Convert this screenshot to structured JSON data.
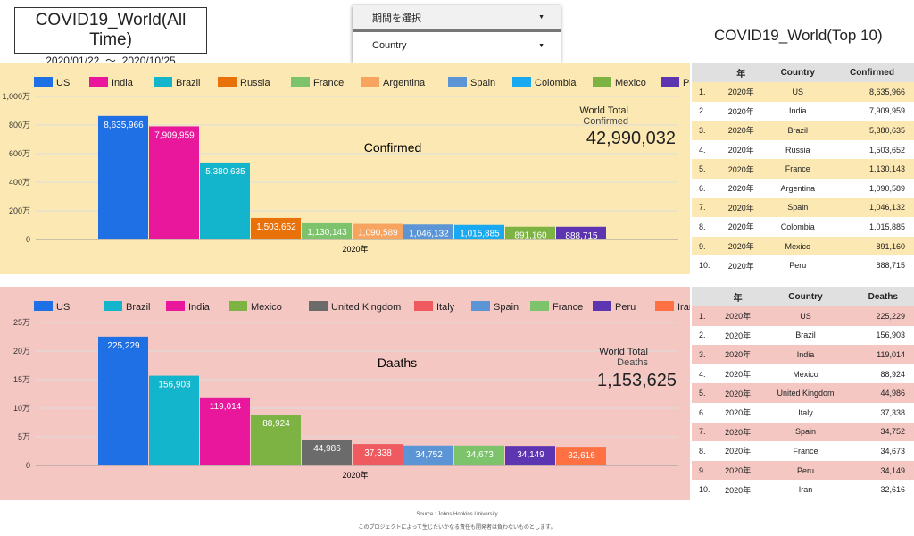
{
  "header": {
    "title": "COVID19_World(All Time)",
    "date_from": "2020/01/22",
    "tilde": "〜",
    "date_to": "2020/10/25",
    "top10_title": "COVID19_World(Top 10)"
  },
  "filters": [
    {
      "label": "期間を選択"
    },
    {
      "label": "Country"
    }
  ],
  "colors": {
    "US": "#1f6fe5",
    "India": "#e8179b",
    "Brazil": "#12b5cb",
    "Russia": "#e8710a",
    "France": "#7cc36b",
    "Argentina": "#f6a460",
    "Spain": "#5b95d6",
    "Colombia": "#18a9f0",
    "Mexico": "#7cb342",
    "Peru": "#5e35b1",
    "United Kingdom": "#6b6b6b",
    "Italy": "#ee5a5f",
    "Iran": "#ff7043"
  },
  "chart_data": [
    {
      "type": "bar",
      "title": "Confirmed",
      "xlabel": "2020年",
      "ylabel": "",
      "ylim": [
        0,
        10000000
      ],
      "yticks": [
        "0",
        "200万",
        "400万",
        "600万",
        "800万",
        "1,000万"
      ],
      "categories": [
        "US",
        "India",
        "Brazil",
        "Russia",
        "France",
        "Argentina",
        "Spain",
        "Colombia",
        "Mexico",
        "Peru"
      ],
      "values": [
        8635966,
        7909959,
        5380635,
        1503652,
        1130143,
        1090589,
        1046132,
        1015885,
        891160,
        888715
      ],
      "labels": [
        "8,635,966",
        "7,909,959",
        "5,380,635",
        "1,503,652",
        "1,130,143",
        "1,090,589",
        "1,046,132",
        "1,015,885",
        "891,160",
        "888,715"
      ],
      "legend": "top",
      "total_label": "World Total",
      "total_sub": "Confirmed",
      "total": "42,990,032"
    },
    {
      "type": "bar",
      "title": "Daaths",
      "xlabel": "2020年",
      "ylabel": "",
      "ylim": [
        0,
        250000
      ],
      "yticks": [
        "0",
        "5万",
        "10万",
        "15万",
        "20万",
        "25万"
      ],
      "categories": [
        "US",
        "Brazil",
        "India",
        "Mexico",
        "United Kingdom",
        "Italy",
        "Spain",
        "France",
        "Peru",
        "Iran"
      ],
      "values": [
        225229,
        156903,
        119014,
        88924,
        44986,
        37338,
        34752,
        34673,
        34149,
        32616
      ],
      "labels": [
        "225,229",
        "156,903",
        "119,014",
        "88,924",
        "44,986",
        "37,338",
        "34,752",
        "34,673",
        "34,149",
        "32,616"
      ],
      "legend": "top",
      "total_label": "World Total",
      "total_sub": "Deaths",
      "total": "1,153,625"
    }
  ],
  "tables": [
    {
      "headers": [
        "",
        "年",
        "Country",
        "Confirmed"
      ],
      "rows": [
        [
          "1.",
          "2020年",
          "US",
          "8,635,966"
        ],
        [
          "2.",
          "2020年",
          "India",
          "7,909,959"
        ],
        [
          "3.",
          "2020年",
          "Brazil",
          "5,380,635"
        ],
        [
          "4.",
          "2020年",
          "Russia",
          "1,503,652"
        ],
        [
          "5.",
          "2020年",
          "France",
          "1,130,143"
        ],
        [
          "6.",
          "2020年",
          "Argentina",
          "1,090,589"
        ],
        [
          "7.",
          "2020年",
          "Spain",
          "1,046,132"
        ],
        [
          "8.",
          "2020年",
          "Colombia",
          "1,015,885"
        ],
        [
          "9.",
          "2020年",
          "Mexico",
          "891,160"
        ],
        [
          "10.",
          "2020年",
          "Peru",
          "888,715"
        ]
      ]
    },
    {
      "headers": [
        "",
        "年",
        "Country",
        "Deaths"
      ],
      "rows": [
        [
          "1.",
          "2020年",
          "US",
          "225,229"
        ],
        [
          "2.",
          "2020年",
          "Brazil",
          "156,903"
        ],
        [
          "3.",
          "2020年",
          "India",
          "119,014"
        ],
        [
          "4.",
          "2020年",
          "Mexico",
          "88,924"
        ],
        [
          "5.",
          "2020年",
          "United Kingdom",
          "44,986"
        ],
        [
          "6.",
          "2020年",
          "Italy",
          "37,338"
        ],
        [
          "7.",
          "2020年",
          "Spain",
          "34,752"
        ],
        [
          "8.",
          "2020年",
          "France",
          "34,673"
        ],
        [
          "9.",
          "2020年",
          "Peru",
          "34,149"
        ],
        [
          "10.",
          "2020年",
          "Iran",
          "32,616"
        ]
      ]
    }
  ],
  "footer": {
    "source": "Source : Johns Hopkins University",
    "disclaimer": "このプロジェクトによって生じたいかなる責任も開発者は負わないものとします。"
  }
}
